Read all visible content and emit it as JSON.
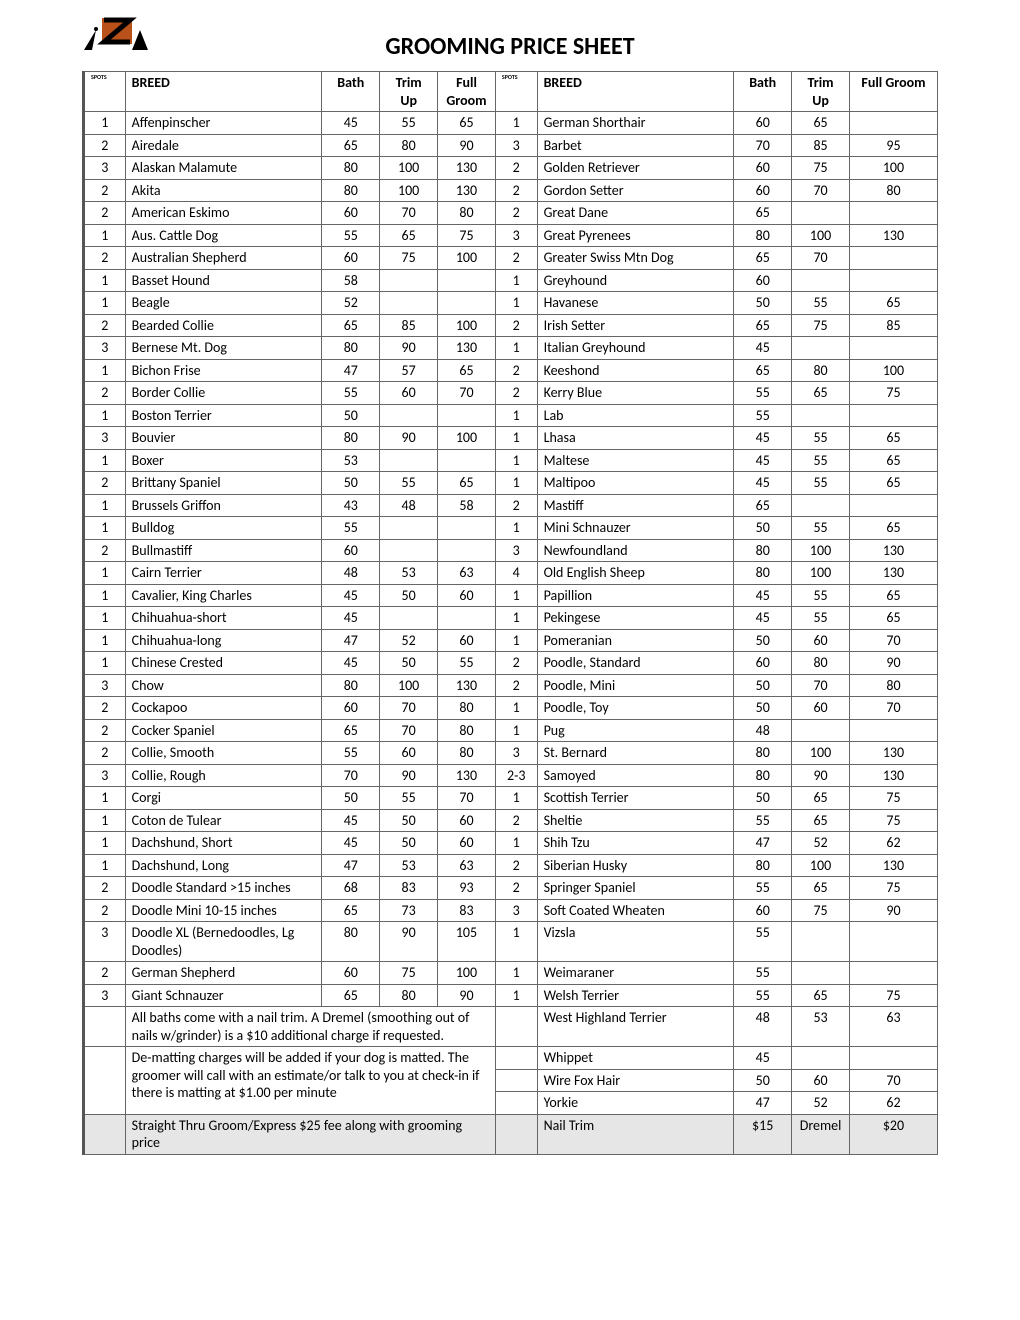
{
  "title": "GROOMING PRICE SHEET",
  "headers": {
    "spots": "SPOTS",
    "breed": "BREED",
    "bath": "Bath",
    "trimup": "Trim Up",
    "fullgroom_left": "Full Groom",
    "fullgroom_right": "Full Groom"
  },
  "left": [
    {
      "s": "1",
      "b": "Affenpinscher",
      "bath": "45",
      "trim": "55",
      "full": "65"
    },
    {
      "s": "2",
      "b": "Airedale",
      "bath": "65",
      "trim": "80",
      "full": "90"
    },
    {
      "s": "3",
      "b": "Alaskan Malamute",
      "bath": "80",
      "trim": "100",
      "full": "130"
    },
    {
      "s": "2",
      "b": "Akita",
      "bath": "80",
      "trim": "100",
      "full": "130"
    },
    {
      "s": "2",
      "b": "American Eskimo",
      "bath": "60",
      "trim": "70",
      "full": "80"
    },
    {
      "s": "1",
      "b": "Aus. Cattle Dog",
      "bath": "55",
      "trim": "65",
      "full": "75"
    },
    {
      "s": "2",
      "b": "Australian Shepherd",
      "bath": "60",
      "trim": "75",
      "full": "100"
    },
    {
      "s": "1",
      "b": "Basset Hound",
      "bath": "58",
      "trim": "",
      "full": ""
    },
    {
      "s": "1",
      "b": "Beagle",
      "bath": "52",
      "trim": "",
      "full": ""
    },
    {
      "s": "2",
      "b": "Bearded Collie",
      "bath": "65",
      "trim": "85",
      "full": "100"
    },
    {
      "s": "3",
      "b": "Bernese Mt. Dog",
      "bath": "80",
      "trim": "90",
      "full": "130"
    },
    {
      "s": "1",
      "b": "Bichon Frise",
      "bath": "47",
      "trim": "57",
      "full": "65"
    },
    {
      "s": "2",
      "b": "Border Collie",
      "bath": "55",
      "trim": "60",
      "full": "70"
    },
    {
      "s": "1",
      "b": "Boston Terrier",
      "bath": "50",
      "trim": "",
      "full": ""
    },
    {
      "s": "3",
      "b": "Bouvier",
      "bath": "80",
      "trim": "90",
      "full": "100"
    },
    {
      "s": "1",
      "b": "Boxer",
      "bath": "53",
      "trim": "",
      "full": ""
    },
    {
      "s": "2",
      "b": "Brittany Spaniel",
      "bath": "50",
      "trim": "55",
      "full": "65"
    },
    {
      "s": "1",
      "b": "Brussels Griffon",
      "bath": "43",
      "trim": "48",
      "full": "58"
    },
    {
      "s": "1",
      "b": "Bulldog",
      "bath": "55",
      "trim": "",
      "full": ""
    },
    {
      "s": "2",
      "b": "Bullmastiff",
      "bath": "60",
      "trim": "",
      "full": ""
    },
    {
      "s": "1",
      "b": "Cairn Terrier",
      "bath": "48",
      "trim": "53",
      "full": "63"
    },
    {
      "s": "1",
      "b": "Cavalier, King Charles",
      "bath": "45",
      "trim": "50",
      "full": "60"
    },
    {
      "s": "1",
      "b": "Chihuahua-short",
      "bath": "45",
      "trim": "",
      "full": ""
    },
    {
      "s": "1",
      "b": "Chihuahua-long",
      "bath": "47",
      "trim": "52",
      "full": "60"
    },
    {
      "s": "1",
      "b": "Chinese Crested",
      "bath": "45",
      "trim": "50",
      "full": "55"
    },
    {
      "s": "3",
      "b": "Chow",
      "bath": "80",
      "trim": "100",
      "full": "130"
    },
    {
      "s": "2",
      "b": "Cockapoo",
      "bath": "60",
      "trim": "70",
      "full": "80"
    },
    {
      "s": "2",
      "b": "Cocker Spaniel",
      "bath": "65",
      "trim": "70",
      "full": "80"
    },
    {
      "s": "2",
      "b": "Collie, Smooth",
      "bath": "55",
      "trim": "60",
      "full": "80"
    },
    {
      "s": "3",
      "b": "Collie, Rough",
      "bath": "70",
      "trim": "90",
      "full": "130"
    },
    {
      "s": "1",
      "b": "Corgi",
      "bath": "50",
      "trim": "55",
      "full": "70"
    },
    {
      "s": "1",
      "b": "Coton de Tulear",
      "bath": "45",
      "trim": "50",
      "full": "60"
    },
    {
      "s": "1",
      "b": "Dachshund, Short",
      "bath": "45",
      "trim": "50",
      "full": "60"
    },
    {
      "s": "1",
      "b": "Dachshund, Long",
      "bath": "47",
      "trim": "53",
      "full": "63"
    },
    {
      "s": "2",
      "b": "Doodle Standard >15 inches",
      "bath": "68",
      "trim": "83",
      "full": "93"
    },
    {
      "s": "2",
      "b": "Doodle Mini 10-15 inches",
      "bath": "65",
      "trim": "73",
      "full": "83"
    },
    {
      "s": "3",
      "b": "Doodle XL (Bernedoodles, Lg Doodles)",
      "bath": "80",
      "trim": "90",
      "full": "105"
    },
    {
      "s": "2",
      "b": "German Shepherd",
      "bath": "60",
      "trim": "75",
      "full": "100"
    },
    {
      "s": "3",
      "b": "Giant Schnauzer",
      "bath": "65",
      "trim": "80",
      "full": "90"
    }
  ],
  "right": [
    {
      "s": "1",
      "b": "German Shorthair",
      "bath": "60",
      "trim": "65",
      "full": ""
    },
    {
      "s": "3",
      "b": "Barbet",
      "bath": "70",
      "trim": "85",
      "full": "95"
    },
    {
      "s": "2",
      "b": "Golden Retriever",
      "bath": "60",
      "trim": "75",
      "full": "100"
    },
    {
      "s": "2",
      "b": "Gordon Setter",
      "bath": "60",
      "trim": "70",
      "full": "80"
    },
    {
      "s": "2",
      "b": "Great Dane",
      "bath": "65",
      "trim": "",
      "full": ""
    },
    {
      "s": "3",
      "b": "Great Pyrenees",
      "bath": "80",
      "trim": "100",
      "full": "130"
    },
    {
      "s": "2",
      "b": "Greater Swiss Mtn Dog",
      "bath": "65",
      "trim": "70",
      "full": ""
    },
    {
      "s": "1",
      "b": "Greyhound",
      "bath": "60",
      "trim": "",
      "full": ""
    },
    {
      "s": "1",
      "b": "Havanese",
      "bath": "50",
      "trim": "55",
      "full": "65"
    },
    {
      "s": "2",
      "b": "Irish Setter",
      "bath": "65",
      "trim": "75",
      "full": "85"
    },
    {
      "s": "1",
      "b": "Italian Greyhound",
      "bath": "45",
      "trim": "",
      "full": ""
    },
    {
      "s": "2",
      "b": "Keeshond",
      "bath": "65",
      "trim": "80",
      "full": "100"
    },
    {
      "s": "2",
      "b": "Kerry Blue",
      "bath": "55",
      "trim": "65",
      "full": "75"
    },
    {
      "s": "1",
      "b": "Lab",
      "bath": "55",
      "trim": "",
      "full": ""
    },
    {
      "s": "1",
      "b": "Lhasa",
      "bath": "45",
      "trim": "55",
      "full": "65"
    },
    {
      "s": "1",
      "b": "Maltese",
      "bath": "45",
      "trim": "55",
      "full": "65"
    },
    {
      "s": "1",
      "b": "Maltipoo",
      "bath": "45",
      "trim": "55",
      "full": "65"
    },
    {
      "s": "2",
      "b": "Mastiff",
      "bath": "65",
      "trim": "",
      "full": ""
    },
    {
      "s": "1",
      "b": "Mini Schnauzer",
      "bath": "50",
      "trim": "55",
      "full": "65"
    },
    {
      "s": "3",
      "b": "Newfoundland",
      "bath": "80",
      "trim": "100",
      "full": "130"
    },
    {
      "s": "4",
      "b": "Old English Sheep",
      "bath": "80",
      "trim": "100",
      "full": "130"
    },
    {
      "s": "1",
      "b": "Papillion",
      "bath": "45",
      "trim": "55",
      "full": "65"
    },
    {
      "s": "1",
      "b": "Pekingese",
      "bath": "45",
      "trim": "55",
      "full": "65"
    },
    {
      "s": "1",
      "b": "Pomeranian",
      "bath": "50",
      "trim": "60",
      "full": "70"
    },
    {
      "s": "2",
      "b": "Poodle, Standard",
      "bath": "60",
      "trim": "80",
      "full": "90"
    },
    {
      "s": "2",
      "b": "Poodle, Mini",
      "bath": "50",
      "trim": "70",
      "full": "80"
    },
    {
      "s": "1",
      "b": "Poodle, Toy",
      "bath": "50",
      "trim": "60",
      "full": "70"
    },
    {
      "s": "1",
      "b": "Pug",
      "bath": "48",
      "trim": "",
      "full": ""
    },
    {
      "s": "3",
      "b": "St. Bernard",
      "bath": "80",
      "trim": "100",
      "full": "130"
    },
    {
      "s": "2-3",
      "b": "Samoyed",
      "bath": "80",
      "trim": "90",
      "full": "130"
    },
    {
      "s": "1",
      "b": "Scottish Terrier",
      "bath": "50",
      "trim": "65",
      "full": "75"
    },
    {
      "s": "2",
      "b": "Sheltie",
      "bath": "55",
      "trim": "65",
      "full": "75"
    },
    {
      "s": "1",
      "b": "Shih Tzu",
      "bath": "47",
      "trim": "52",
      "full": "62"
    },
    {
      "s": "2",
      "b": "Siberian Husky",
      "bath": "80",
      "trim": "100",
      "full": "130"
    },
    {
      "s": "2",
      "b": "Springer Spaniel",
      "bath": "55",
      "trim": "65",
      "full": "75"
    },
    {
      "s": "3",
      "b": "Soft Coated Wheaten",
      "bath": "60",
      "trim": "75",
      "full": "90"
    },
    {
      "s": "1",
      "b": "Vizsla",
      "bath": "55",
      "trim": "",
      "full": ""
    },
    {
      "s": "1",
      "b": "Weimaraner",
      "bath": "55",
      "trim": "",
      "full": ""
    },
    {
      "s": "1",
      "b": "Welsh Terrier",
      "bath": "55",
      "trim": "65",
      "full": "75"
    },
    {
      "s": "",
      "b": "West Highland Terrier",
      "bath": "48",
      "trim": "53",
      "full": "63"
    },
    {
      "s": "",
      "b": "Whippet",
      "bath": "45",
      "trim": "",
      "full": ""
    },
    {
      "s": "",
      "b": "Wire Fox Hair",
      "bath": "50",
      "trim": "60",
      "full": "70"
    },
    {
      "s": "",
      "b": "Yorkie",
      "bath": "47",
      "trim": "52",
      "full": "62"
    },
    {
      "s": "",
      "b": "Nail Trim",
      "bath": "$15",
      "trim": "Dremel",
      "full": "$20",
      "hl": true
    }
  ],
  "notes": [
    "All baths come with a nail trim. A Dremel (smoothing out of nails w/grinder) is a $10 additional charge if requested.",
    "De-matting charges will be added if your dog is matted. The groomer will call with an estimate/or talk to you at check-in if there is matting at $1.00 per minute",
    "Straight Thru Groom/Express $25 fee along with grooming price"
  ],
  "note_right_rows": [
    39,
    40,
    41,
    42,
    43
  ],
  "styling": {
    "page_bg": "#ffffff",
    "border_color": "#666666",
    "highlight_bg": "#e7e6e6",
    "title_fontsize": 24,
    "body_fontsize": 14
  }
}
